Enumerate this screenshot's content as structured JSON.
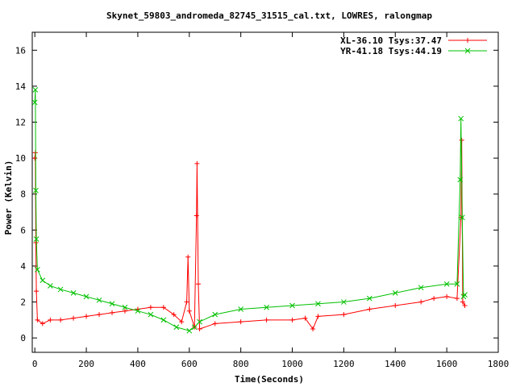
{
  "chart_data": {
    "type": "line",
    "title": "Skynet_59803_andromeda_82745_31515_cal.txt, LOWRES, ralongmap",
    "xlabel": "Time(Seconds)",
    "ylabel": "Power (Kelvin)",
    "xlim": [
      -10,
      1800
    ],
    "ylim": [
      -0.8,
      17
    ],
    "xticks": [
      0,
      200,
      400,
      600,
      800,
      1000,
      1200,
      1400,
      1600,
      1800
    ],
    "yticks": [
      0,
      2,
      4,
      6,
      8,
      10,
      12,
      14,
      16
    ],
    "grid": false,
    "legend_position": "top-right",
    "series": [
      {
        "name": "XL-36.10 Tsys:37.47",
        "color": "#ff0000",
        "marker": "plus",
        "points": [
          [
            0,
            10.0
          ],
          [
            2,
            10.3
          ],
          [
            4,
            5.3
          ],
          [
            6,
            2.6
          ],
          [
            10,
            1.0
          ],
          [
            30,
            0.8
          ],
          [
            60,
            1.0
          ],
          [
            100,
            1.0
          ],
          [
            150,
            1.1
          ],
          [
            200,
            1.2
          ],
          [
            250,
            1.3
          ],
          [
            300,
            1.4
          ],
          [
            350,
            1.5
          ],
          [
            400,
            1.6
          ],
          [
            450,
            1.7
          ],
          [
            500,
            1.7
          ],
          [
            540,
            1.3
          ],
          [
            570,
            0.9
          ],
          [
            590,
            2.0
          ],
          [
            595,
            4.5
          ],
          [
            600,
            1.5
          ],
          [
            620,
            0.6
          ],
          [
            628,
            6.8
          ],
          [
            630,
            9.7
          ],
          [
            635,
            3.0
          ],
          [
            640,
            0.5
          ],
          [
            700,
            0.8
          ],
          [
            800,
            0.9
          ],
          [
            900,
            1.0
          ],
          [
            1000,
            1.0
          ],
          [
            1050,
            1.1
          ],
          [
            1080,
            0.5
          ],
          [
            1100,
            1.2
          ],
          [
            1200,
            1.3
          ],
          [
            1300,
            1.6
          ],
          [
            1400,
            1.8
          ],
          [
            1500,
            2.0
          ],
          [
            1550,
            2.2
          ],
          [
            1600,
            2.3
          ],
          [
            1640,
            2.2
          ],
          [
            1655,
            6.7
          ],
          [
            1658,
            11.0
          ],
          [
            1662,
            2.0
          ],
          [
            1670,
            1.8
          ]
        ]
      },
      {
        "name": "YR-41.18 Tsys:44.19",
        "color": "#00c000",
        "marker": "x",
        "points": [
          [
            0,
            13.1
          ],
          [
            2,
            13.8
          ],
          [
            4,
            8.2
          ],
          [
            6,
            5.5
          ],
          [
            10,
            3.8
          ],
          [
            30,
            3.2
          ],
          [
            60,
            2.9
          ],
          [
            100,
            2.7
          ],
          [
            150,
            2.5
          ],
          [
            200,
            2.3
          ],
          [
            250,
            2.1
          ],
          [
            300,
            1.9
          ],
          [
            350,
            1.7
          ],
          [
            400,
            1.5
          ],
          [
            450,
            1.3
          ],
          [
            500,
            1.0
          ],
          [
            550,
            0.6
          ],
          [
            600,
            0.4
          ],
          [
            620,
            0.6
          ],
          [
            640,
            0.9
          ],
          [
            700,
            1.3
          ],
          [
            800,
            1.6
          ],
          [
            900,
            1.7
          ],
          [
            1000,
            1.8
          ],
          [
            1100,
            1.9
          ],
          [
            1200,
            2.0
          ],
          [
            1300,
            2.2
          ],
          [
            1400,
            2.5
          ],
          [
            1500,
            2.8
          ],
          [
            1600,
            3.0
          ],
          [
            1640,
            3.0
          ],
          [
            1652,
            8.8
          ],
          [
            1655,
            12.2
          ],
          [
            1660,
            6.7
          ],
          [
            1665,
            2.3
          ],
          [
            1670,
            2.4
          ]
        ]
      }
    ]
  }
}
